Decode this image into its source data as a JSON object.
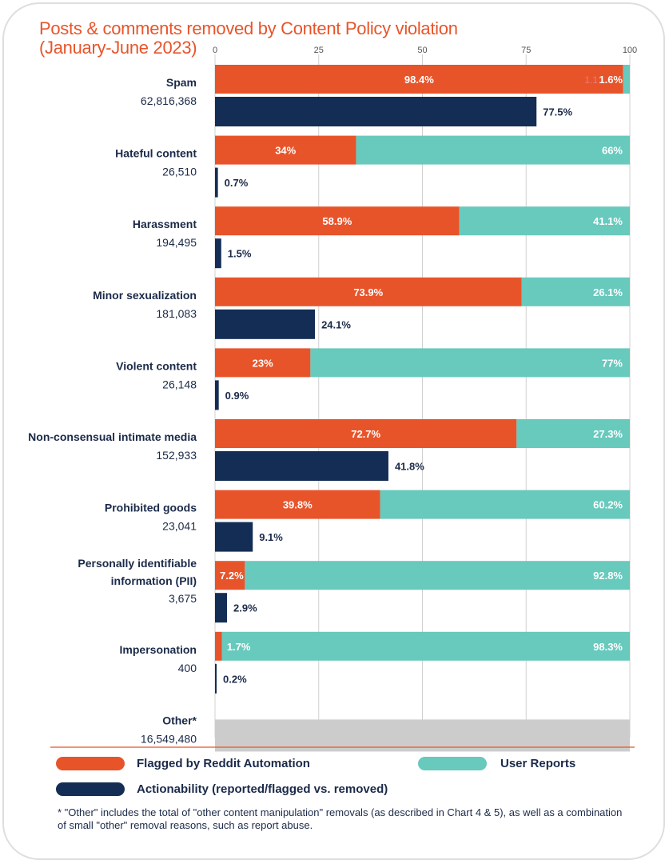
{
  "title": {
    "line1": "Posts & comments removed by Content Policy violation",
    "line2": "(January-June 2023)"
  },
  "colors": {
    "automation": "#e8542a",
    "user_reports": "#68c9bd",
    "actionability": "#142d55",
    "other": "#cccccc",
    "label_text": "#1b2a49"
  },
  "chart_data": {
    "type": "bar",
    "orientation": "horizontal",
    "xlim": [
      0,
      100
    ],
    "xticks": [
      "0",
      "25",
      "50",
      "75",
      "100"
    ],
    "grid": true,
    "categories": [
      {
        "name": "Spam",
        "count": "62,816,368",
        "automation": 98.4,
        "user_reports": 1.6,
        "actionability": 77.5,
        "automation_label": "98.4%",
        "user_label": "1.6%",
        "action_label": "77.5%",
        "extra_label": "1.1"
      },
      {
        "name": "Hateful content",
        "count": "26,510",
        "automation": 34,
        "user_reports": 66,
        "actionability": 0.7,
        "automation_label": "34%",
        "user_label": "66%",
        "action_label": "0.7%"
      },
      {
        "name": "Harassment",
        "count": "194,495",
        "automation": 58.9,
        "user_reports": 41.1,
        "actionability": 1.5,
        "automation_label": "58.9%",
        "user_label": "41.1%",
        "action_label": "1.5%"
      },
      {
        "name": "Minor sexualization",
        "count": "181,083",
        "automation": 73.9,
        "user_reports": 26.1,
        "actionability": 24.1,
        "automation_label": "73.9%",
        "user_label": "26.1%",
        "action_label": "24.1%"
      },
      {
        "name": "Violent content",
        "count": "26,148",
        "automation": 23,
        "user_reports": 77,
        "actionability": 0.9,
        "automation_label": "23%",
        "user_label": "77%",
        "action_label": "0.9%"
      },
      {
        "name": "Non-consensual intimate media",
        "count": "152,933",
        "automation": 72.7,
        "user_reports": 27.3,
        "actionability": 41.8,
        "automation_label": "72.7%",
        "user_label": "27.3%",
        "action_label": "41.8%"
      },
      {
        "name": "Prohibited goods",
        "count": "23,041",
        "automation": 39.8,
        "user_reports": 60.2,
        "actionability": 9.1,
        "automation_label": "39.8%",
        "user_label": "60.2%",
        "action_label": "9.1%"
      },
      {
        "name_lines": [
          "Personally identifiable",
          "information (PII)"
        ],
        "name": "Personally identifiable information (PII)",
        "count": "3,675",
        "automation": 7.2,
        "user_reports": 92.8,
        "actionability": 2.9,
        "automation_label": "7.2%",
        "user_label": "92.8%",
        "action_label": "2.9%"
      },
      {
        "name": "Impersonation",
        "count": "400",
        "automation": 1.7,
        "user_reports": 98.3,
        "actionability": 0.2,
        "automation_label": "1.7%",
        "user_label": "98.3%",
        "action_label": "0.2%",
        "automation_label_outside": true
      },
      {
        "name": "Other*",
        "count": "16,549,480",
        "other": 100
      }
    ]
  },
  "legend": {
    "automation": "Flagged by Reddit Automation",
    "user_reports": "User Reports",
    "actionability": "Actionability (reported/flagged vs. removed)"
  },
  "footnote": "* \"Other\" includes the total of \"other content manipulation\" removals (as described in Chart 4 & 5), as well as a combination of small \"other\" removal reasons, such as report abuse."
}
